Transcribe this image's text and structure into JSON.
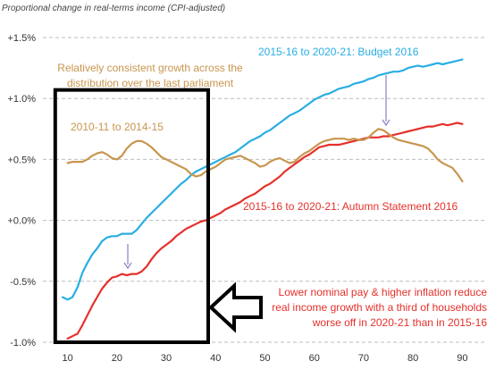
{
  "chart_data": {
    "type": "line",
    "ylabel": "Proportional change in real-terms income (CPI-adjusted)",
    "xlim": [
      5,
      95
    ],
    "ylim": [
      -1.0,
      1.5
    ],
    "x_ticks": [
      10,
      20,
      30,
      40,
      50,
      60,
      70,
      80,
      90
    ],
    "y_ticks": [
      {
        "value": 1.5,
        "label": "+1.5%"
      },
      {
        "value": 1.0,
        "label": "+1.0%"
      },
      {
        "value": 0.5,
        "label": "+0.5%"
      },
      {
        "value": 0.0,
        "label": "+0.0%"
      },
      {
        "value": -0.5,
        "label": "-0.5%"
      },
      {
        "value": -1.0,
        "label": "-1.0%"
      }
    ],
    "grid": "horizontal dashed",
    "series": [
      {
        "name": "2015-16 to 2020-21: Budget 2016",
        "color": "#29aee3",
        "points": [
          [
            9,
            -0.63
          ],
          [
            10,
            -0.65
          ],
          [
            11,
            -0.63
          ],
          [
            12,
            -0.55
          ],
          [
            13,
            -0.43
          ],
          [
            14,
            -0.35
          ],
          [
            15,
            -0.28
          ],
          [
            16,
            -0.23
          ],
          [
            17,
            -0.17
          ],
          [
            18,
            -0.14
          ],
          [
            19,
            -0.13
          ],
          [
            20,
            -0.13
          ],
          [
            21,
            -0.11
          ],
          [
            22,
            -0.11
          ],
          [
            23,
            -0.11
          ],
          [
            24,
            -0.08
          ],
          [
            25,
            -0.03
          ],
          [
            26,
            0.02
          ],
          [
            27,
            0.06
          ],
          [
            28,
            0.1
          ],
          [
            29,
            0.14
          ],
          [
            30,
            0.18
          ],
          [
            31,
            0.22
          ],
          [
            32,
            0.26
          ],
          [
            33,
            0.3
          ],
          [
            34,
            0.33
          ],
          [
            35,
            0.37
          ],
          [
            36,
            0.4
          ],
          [
            37,
            0.42
          ],
          [
            38,
            0.44
          ],
          [
            39,
            0.46
          ],
          [
            40,
            0.48
          ],
          [
            41,
            0.5
          ],
          [
            42,
            0.52
          ],
          [
            43,
            0.54
          ],
          [
            44,
            0.56
          ],
          [
            45,
            0.59
          ],
          [
            46,
            0.62
          ],
          [
            47,
            0.65
          ],
          [
            48,
            0.67
          ],
          [
            49,
            0.69
          ],
          [
            50,
            0.72
          ],
          [
            51,
            0.74
          ],
          [
            52,
            0.77
          ],
          [
            53,
            0.8
          ],
          [
            54,
            0.83
          ],
          [
            55,
            0.86
          ],
          [
            56,
            0.88
          ],
          [
            57,
            0.9
          ],
          [
            58,
            0.93
          ],
          [
            59,
            0.96
          ],
          [
            60,
            0.99
          ],
          [
            61,
            1.01
          ],
          [
            62,
            1.03
          ],
          [
            63,
            1.04
          ],
          [
            64,
            1.06
          ],
          [
            65,
            1.08
          ],
          [
            66,
            1.09
          ],
          [
            67,
            1.1
          ],
          [
            68,
            1.12
          ],
          [
            69,
            1.13
          ],
          [
            70,
            1.14
          ],
          [
            71,
            1.16
          ],
          [
            72,
            1.17
          ],
          [
            73,
            1.19
          ],
          [
            74,
            1.2
          ],
          [
            75,
            1.21
          ],
          [
            76,
            1.22
          ],
          [
            77,
            1.22
          ],
          [
            78,
            1.23
          ],
          [
            79,
            1.25
          ],
          [
            80,
            1.26
          ],
          [
            81,
            1.27
          ],
          [
            82,
            1.26
          ],
          [
            83,
            1.27
          ],
          [
            84,
            1.28
          ],
          [
            85,
            1.29
          ],
          [
            86,
            1.28
          ],
          [
            87,
            1.29
          ],
          [
            88,
            1.3
          ],
          [
            89,
            1.31
          ],
          [
            90,
            1.32
          ]
        ]
      },
      {
        "name": "2015-16 to 2020-21: Autumn Statement 2016",
        "color": "#e5302b",
        "points": [
          [
            10,
            -0.97
          ],
          [
            11,
            -0.95
          ],
          [
            12,
            -0.93
          ],
          [
            13,
            -0.86
          ],
          [
            14,
            -0.78
          ],
          [
            15,
            -0.7
          ],
          [
            16,
            -0.63
          ],
          [
            17,
            -0.56
          ],
          [
            18,
            -0.51
          ],
          [
            19,
            -0.47
          ],
          [
            20,
            -0.46
          ],
          [
            21,
            -0.44
          ],
          [
            22,
            -0.45
          ],
          [
            23,
            -0.44
          ],
          [
            24,
            -0.44
          ],
          [
            25,
            -0.42
          ],
          [
            26,
            -0.38
          ],
          [
            27,
            -0.32
          ],
          [
            28,
            -0.27
          ],
          [
            29,
            -0.23
          ],
          [
            30,
            -0.2
          ],
          [
            31,
            -0.17
          ],
          [
            32,
            -0.13
          ],
          [
            33,
            -0.1
          ],
          [
            34,
            -0.07
          ],
          [
            35,
            -0.05
          ],
          [
            36,
            -0.03
          ],
          [
            37,
            -0.01
          ],
          [
            38,
            0.0
          ],
          [
            39,
            0.02
          ],
          [
            40,
            0.04
          ],
          [
            41,
            0.06
          ],
          [
            42,
            0.09
          ],
          [
            43,
            0.11
          ],
          [
            44,
            0.13
          ],
          [
            45,
            0.15
          ],
          [
            46,
            0.18
          ],
          [
            47,
            0.2
          ],
          [
            48,
            0.22
          ],
          [
            49,
            0.25
          ],
          [
            50,
            0.28
          ],
          [
            51,
            0.3
          ],
          [
            52,
            0.33
          ],
          [
            53,
            0.36
          ],
          [
            54,
            0.4
          ],
          [
            55,
            0.43
          ],
          [
            56,
            0.46
          ],
          [
            57,
            0.49
          ],
          [
            58,
            0.52
          ],
          [
            59,
            0.54
          ],
          [
            60,
            0.57
          ],
          [
            61,
            0.6
          ],
          [
            62,
            0.61
          ],
          [
            63,
            0.62
          ],
          [
            64,
            0.62
          ],
          [
            65,
            0.62
          ],
          [
            66,
            0.63
          ],
          [
            67,
            0.64
          ],
          [
            68,
            0.65
          ],
          [
            69,
            0.66
          ],
          [
            70,
            0.67
          ],
          [
            71,
            0.68
          ],
          [
            72,
            0.68
          ],
          [
            73,
            0.68
          ],
          [
            74,
            0.69
          ],
          [
            75,
            0.69
          ],
          [
            76,
            0.7
          ],
          [
            77,
            0.71
          ],
          [
            78,
            0.72
          ],
          [
            79,
            0.73
          ],
          [
            80,
            0.74
          ],
          [
            81,
            0.75
          ],
          [
            82,
            0.76
          ],
          [
            83,
            0.77
          ],
          [
            84,
            0.77
          ],
          [
            85,
            0.78
          ],
          [
            86,
            0.79
          ],
          [
            87,
            0.78
          ],
          [
            88,
            0.79
          ],
          [
            89,
            0.8
          ],
          [
            90,
            0.79
          ]
        ]
      },
      {
        "name": "2010-11 to 2014-15",
        "color": "#c8964e",
        "points": [
          [
            10,
            0.47
          ],
          [
            11,
            0.48
          ],
          [
            12,
            0.48
          ],
          [
            13,
            0.48
          ],
          [
            14,
            0.5
          ],
          [
            15,
            0.53
          ],
          [
            16,
            0.55
          ],
          [
            17,
            0.56
          ],
          [
            18,
            0.54
          ],
          [
            19,
            0.51
          ],
          [
            20,
            0.5
          ],
          [
            21,
            0.53
          ],
          [
            22,
            0.59
          ],
          [
            23,
            0.63
          ],
          [
            24,
            0.65
          ],
          [
            25,
            0.65
          ],
          [
            26,
            0.63
          ],
          [
            27,
            0.6
          ],
          [
            28,
            0.56
          ],
          [
            29,
            0.52
          ],
          [
            30,
            0.5
          ],
          [
            31,
            0.48
          ],
          [
            32,
            0.46
          ],
          [
            33,
            0.44
          ],
          [
            34,
            0.42
          ],
          [
            35,
            0.38
          ],
          [
            36,
            0.36
          ],
          [
            37,
            0.37
          ],
          [
            38,
            0.4
          ],
          [
            39,
            0.42
          ],
          [
            40,
            0.44
          ],
          [
            41,
            0.47
          ],
          [
            42,
            0.5
          ],
          [
            43,
            0.51
          ],
          [
            44,
            0.52
          ],
          [
            45,
            0.53
          ],
          [
            46,
            0.51
          ],
          [
            47,
            0.49
          ],
          [
            48,
            0.47
          ],
          [
            49,
            0.44
          ],
          [
            50,
            0.45
          ],
          [
            51,
            0.48
          ],
          [
            52,
            0.5
          ],
          [
            53,
            0.51
          ],
          [
            54,
            0.49
          ],
          [
            55,
            0.47
          ],
          [
            56,
            0.48
          ],
          [
            57,
            0.52
          ],
          [
            58,
            0.55
          ],
          [
            59,
            0.57
          ],
          [
            60,
            0.6
          ],
          [
            61,
            0.63
          ],
          [
            62,
            0.65
          ],
          [
            63,
            0.66
          ],
          [
            64,
            0.67
          ],
          [
            65,
            0.67
          ],
          [
            66,
            0.67
          ],
          [
            67,
            0.66
          ],
          [
            68,
            0.67
          ],
          [
            69,
            0.66
          ],
          [
            70,
            0.66
          ],
          [
            71,
            0.68
          ],
          [
            72,
            0.72
          ],
          [
            73,
            0.75
          ],
          [
            74,
            0.74
          ],
          [
            75,
            0.71
          ],
          [
            76,
            0.68
          ],
          [
            77,
            0.66
          ],
          [
            78,
            0.65
          ],
          [
            79,
            0.64
          ],
          [
            80,
            0.63
          ],
          [
            81,
            0.62
          ],
          [
            82,
            0.61
          ],
          [
            83,
            0.59
          ],
          [
            84,
            0.55
          ],
          [
            85,
            0.5
          ],
          [
            86,
            0.47
          ],
          [
            87,
            0.45
          ],
          [
            88,
            0.43
          ],
          [
            89,
            0.38
          ],
          [
            90,
            0.32
          ]
        ]
      }
    ],
    "annotations": [
      {
        "key": "budget_label",
        "lines": [
          "2015-16 to 2020-21: Budget 2016"
        ],
        "color": "#29aee3",
        "anchor": "start"
      },
      {
        "key": "consistent_growth",
        "lines": [
          "Relatively consistent growth across the",
          "distribution over the last parliament"
        ],
        "color": "#c8964e",
        "anchor": "middle"
      },
      {
        "key": "period_label",
        "lines": [
          "2010-11 to 2014-15"
        ],
        "color": "#c8964e",
        "anchor": "start"
      },
      {
        "key": "autumn_label",
        "lines": [
          "2015-16 to 2020-21: Autumn Statement 2016"
        ],
        "color": "#e5302b",
        "anchor": "start"
      },
      {
        "key": "lower_pay",
        "lines": [
          "Lower nominal pay & higher inflation reduce",
          "real income growth with a third of households",
          "worse off in 2020-21 than in 2015-16"
        ],
        "color": "#e5302b",
        "anchor": "end"
      }
    ],
    "highlight_box": {
      "x_range": [
        7.5,
        38.5
      ],
      "y_range": [
        -1.0,
        1.07
      ]
    }
  }
}
